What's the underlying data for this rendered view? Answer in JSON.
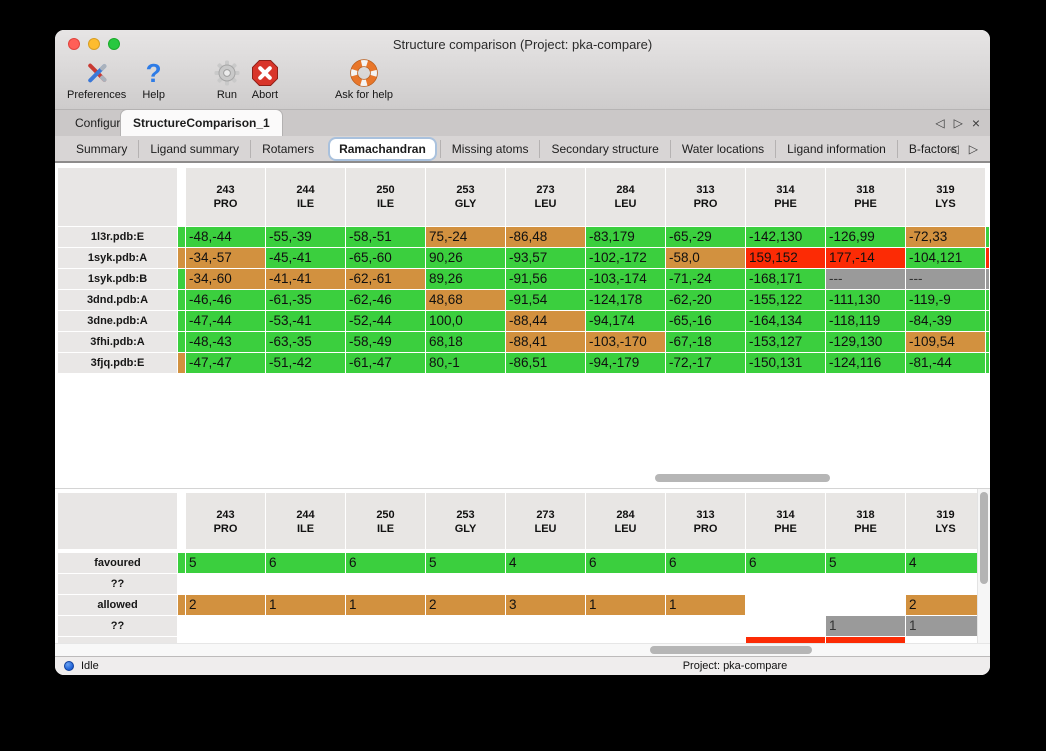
{
  "window": {
    "title": "Structure comparison (Project: pka-compare)"
  },
  "toolbar": {
    "items": [
      {
        "label": "Preferences"
      },
      {
        "label": "Help"
      },
      {
        "label": "Run"
      },
      {
        "label": "Abort"
      },
      {
        "label": "Ask for help"
      }
    ]
  },
  "tabs": {
    "items": [
      {
        "label": "Configure",
        "active": false
      },
      {
        "label": "StructureComparison_1",
        "active": true
      }
    ]
  },
  "subtabs": {
    "active": "Ramachandran",
    "items": [
      "Summary",
      "Ligand summary",
      "Rotamers",
      "Ramachandran",
      "Missing atoms",
      "Secondary structure",
      "Water locations",
      "Ligand information",
      "B-factors"
    ]
  },
  "icons": {
    "help_glyph": "?",
    "prev_glyph": "◁",
    "next_glyph": "▷",
    "close_glyph": "×"
  },
  "colors": {
    "favoured": "#3bcf3e",
    "allowed": "#d2913f",
    "outlier": "#fc2b05",
    "missing": "#9a9a9a"
  },
  "legend_meaning": {
    "favoured": "green",
    "allowed": "orange",
    "outlier": "red",
    "missing": "gray"
  },
  "table": {
    "columns": [
      {
        "num": "243",
        "res": "PRO"
      },
      {
        "num": "244",
        "res": "ILE"
      },
      {
        "num": "250",
        "res": "ILE"
      },
      {
        "num": "253",
        "res": "GLY"
      },
      {
        "num": "273",
        "res": "LEU"
      },
      {
        "num": "284",
        "res": "LEU"
      },
      {
        "num": "313",
        "res": "PRO"
      },
      {
        "num": "314",
        "res": "PHE"
      },
      {
        "num": "318",
        "res": "PHE"
      },
      {
        "num": "319",
        "res": "LYS"
      }
    ],
    "rows": [
      {
        "label": "1l3r.pdb:E",
        "edge": "favoured",
        "edge_r": "favoured",
        "cells": [
          {
            "v": "-48,-44",
            "c": "favoured"
          },
          {
            "v": "-55,-39",
            "c": "favoured"
          },
          {
            "v": "-58,-51",
            "c": "favoured"
          },
          {
            "v": "75,-24",
            "c": "allowed"
          },
          {
            "v": "-86,48",
            "c": "allowed"
          },
          {
            "v": "-83,179",
            "c": "favoured"
          },
          {
            "v": "-65,-29",
            "c": "favoured"
          },
          {
            "v": "-142,130",
            "c": "favoured"
          },
          {
            "v": "-126,99",
            "c": "favoured"
          },
          {
            "v": "-72,33",
            "c": "allowed"
          }
        ]
      },
      {
        "label": "1syk.pdb:A",
        "edge": "allowed",
        "edge_r": "outlier",
        "cells": [
          {
            "v": "-34,-57",
            "c": "allowed"
          },
          {
            "v": "-45,-41",
            "c": "favoured"
          },
          {
            "v": "-65,-60",
            "c": "favoured"
          },
          {
            "v": "90,26",
            "c": "favoured"
          },
          {
            "v": "-93,57",
            "c": "favoured"
          },
          {
            "v": "-102,-172",
            "c": "favoured"
          },
          {
            "v": "-58,0",
            "c": "allowed"
          },
          {
            "v": "159,152",
            "c": "outlier"
          },
          {
            "v": "177,-14",
            "c": "outlier"
          },
          {
            "v": "-104,121",
            "c": "favoured"
          }
        ]
      },
      {
        "label": "1syk.pdb:B",
        "edge": "favoured",
        "edge_r": "missing",
        "cells": [
          {
            "v": "-34,-60",
            "c": "allowed"
          },
          {
            "v": "-41,-41",
            "c": "allowed"
          },
          {
            "v": "-62,-61",
            "c": "allowed"
          },
          {
            "v": "89,26",
            "c": "favoured"
          },
          {
            "v": "-91,56",
            "c": "favoured"
          },
          {
            "v": "-103,-174",
            "c": "favoured"
          },
          {
            "v": "-71,-24",
            "c": "favoured"
          },
          {
            "v": "-168,171",
            "c": "favoured"
          },
          {
            "v": "---",
            "c": "missing"
          },
          {
            "v": "---",
            "c": "missing"
          }
        ]
      },
      {
        "label": "3dnd.pdb:A",
        "edge": "favoured",
        "edge_r": "favoured",
        "cells": [
          {
            "v": "-46,-46",
            "c": "favoured"
          },
          {
            "v": "-61,-35",
            "c": "favoured"
          },
          {
            "v": "-62,-46",
            "c": "favoured"
          },
          {
            "v": "48,68",
            "c": "allowed"
          },
          {
            "v": "-91,54",
            "c": "favoured"
          },
          {
            "v": "-124,178",
            "c": "favoured"
          },
          {
            "v": "-62,-20",
            "c": "favoured"
          },
          {
            "v": "-155,122",
            "c": "favoured"
          },
          {
            "v": "-111,130",
            "c": "favoured"
          },
          {
            "v": "-119,-9",
            "c": "favoured"
          }
        ]
      },
      {
        "label": "3dne.pdb:A",
        "edge": "favoured",
        "edge_r": "favoured",
        "cells": [
          {
            "v": "-47,-44",
            "c": "favoured"
          },
          {
            "v": "-53,-41",
            "c": "favoured"
          },
          {
            "v": "-52,-44",
            "c": "favoured"
          },
          {
            "v": "100,0",
            "c": "favoured"
          },
          {
            "v": "-88,44",
            "c": "allowed"
          },
          {
            "v": "-94,174",
            "c": "favoured"
          },
          {
            "v": "-65,-16",
            "c": "favoured"
          },
          {
            "v": "-164,134",
            "c": "favoured"
          },
          {
            "v": "-118,119",
            "c": "favoured"
          },
          {
            "v": "-84,-39",
            "c": "favoured"
          }
        ]
      },
      {
        "label": "3fhi.pdb:A",
        "edge": "favoured",
        "edge_r": "favoured",
        "cells": [
          {
            "v": "-48,-43",
            "c": "favoured"
          },
          {
            "v": "-63,-35",
            "c": "favoured"
          },
          {
            "v": "-58,-49",
            "c": "favoured"
          },
          {
            "v": "68,18",
            "c": "favoured"
          },
          {
            "v": "-88,41",
            "c": "allowed"
          },
          {
            "v": "-103,-170",
            "c": "allowed"
          },
          {
            "v": "-67,-18",
            "c": "favoured"
          },
          {
            "v": "-153,127",
            "c": "favoured"
          },
          {
            "v": "-129,130",
            "c": "favoured"
          },
          {
            "v": "-109,54",
            "c": "allowed"
          }
        ]
      },
      {
        "label": "3fjq.pdb:E",
        "edge": "allowed",
        "edge_r": "favoured",
        "cells": [
          {
            "v": "-47,-47",
            "c": "favoured"
          },
          {
            "v": "-51,-42",
            "c": "favoured"
          },
          {
            "v": "-61,-47",
            "c": "favoured"
          },
          {
            "v": "80,-1",
            "c": "favoured"
          },
          {
            "v": "-86,51",
            "c": "favoured"
          },
          {
            "v": "-94,-179",
            "c": "favoured"
          },
          {
            "v": "-72,-17",
            "c": "favoured"
          },
          {
            "v": "-150,131",
            "c": "favoured"
          },
          {
            "v": "-124,116",
            "c": "favoured"
          },
          {
            "v": "-81,-44",
            "c": "favoured"
          }
        ]
      }
    ]
  },
  "summary_table": {
    "columns": [
      {
        "num": "243",
        "res": "PRO"
      },
      {
        "num": "244",
        "res": "ILE"
      },
      {
        "num": "250",
        "res": "ILE"
      },
      {
        "num": "253",
        "res": "GLY"
      },
      {
        "num": "273",
        "res": "LEU"
      },
      {
        "num": "284",
        "res": "LEU"
      },
      {
        "num": "313",
        "res": "PRO"
      },
      {
        "num": "314",
        "res": "PHE"
      },
      {
        "num": "318",
        "res": "PHE"
      },
      {
        "num": "319",
        "res": "LYS"
      }
    ],
    "rows": [
      {
        "label": "favoured",
        "edge": "favoured",
        "cells": [
          {
            "v": "5",
            "c": "favoured"
          },
          {
            "v": "6",
            "c": "favoured"
          },
          {
            "v": "6",
            "c": "favoured"
          },
          {
            "v": "5",
            "c": "favoured"
          },
          {
            "v": "4",
            "c": "favoured"
          },
          {
            "v": "6",
            "c": "favoured"
          },
          {
            "v": "6",
            "c": "favoured"
          },
          {
            "v": "6",
            "c": "favoured"
          },
          {
            "v": "5",
            "c": "favoured"
          },
          {
            "v": "4",
            "c": "favoured"
          }
        ]
      },
      {
        "label": "??",
        "edge": "none",
        "cells": [
          {
            "v": "",
            "c": "none"
          },
          {
            "v": "",
            "c": "none"
          },
          {
            "v": "",
            "c": "none"
          },
          {
            "v": "",
            "c": "none"
          },
          {
            "v": "",
            "c": "none"
          },
          {
            "v": "",
            "c": "none"
          },
          {
            "v": "",
            "c": "none"
          },
          {
            "v": "",
            "c": "none"
          },
          {
            "v": "",
            "c": "none"
          },
          {
            "v": "",
            "c": "none"
          }
        ]
      },
      {
        "label": "allowed",
        "edge": "allowed",
        "cells": [
          {
            "v": "2",
            "c": "allowed"
          },
          {
            "v": "1",
            "c": "allowed"
          },
          {
            "v": "1",
            "c": "allowed"
          },
          {
            "v": "2",
            "c": "allowed"
          },
          {
            "v": "3",
            "c": "allowed"
          },
          {
            "v": "1",
            "c": "allowed"
          },
          {
            "v": "1",
            "c": "allowed"
          },
          {
            "v": "",
            "c": "none"
          },
          {
            "v": "",
            "c": "none"
          },
          {
            "v": "2",
            "c": "allowed"
          }
        ]
      },
      {
        "label": "??",
        "edge": "none",
        "cells": [
          {
            "v": "",
            "c": "none"
          },
          {
            "v": "",
            "c": "none"
          },
          {
            "v": "",
            "c": "none"
          },
          {
            "v": "",
            "c": "none"
          },
          {
            "v": "",
            "c": "none"
          },
          {
            "v": "",
            "c": "none"
          },
          {
            "v": "",
            "c": "none"
          },
          {
            "v": "",
            "c": "none"
          },
          {
            "v": "1",
            "c": "missing"
          },
          {
            "v": "1",
            "c": "missing"
          }
        ]
      },
      {
        "label": "",
        "edge": "none",
        "cells": [
          {
            "v": "",
            "c": "none"
          },
          {
            "v": "",
            "c": "none"
          },
          {
            "v": "",
            "c": "none"
          },
          {
            "v": "",
            "c": "none"
          },
          {
            "v": "",
            "c": "none"
          },
          {
            "v": "",
            "c": "none"
          },
          {
            "v": "",
            "c": "none"
          },
          {
            "v": "",
            "c": "outlier"
          },
          {
            "v": "",
            "c": "outlier"
          },
          {
            "v": "",
            "c": "none"
          }
        ]
      }
    ]
  },
  "statusbar": {
    "status": "Idle",
    "project": "Project: pka-compare"
  }
}
